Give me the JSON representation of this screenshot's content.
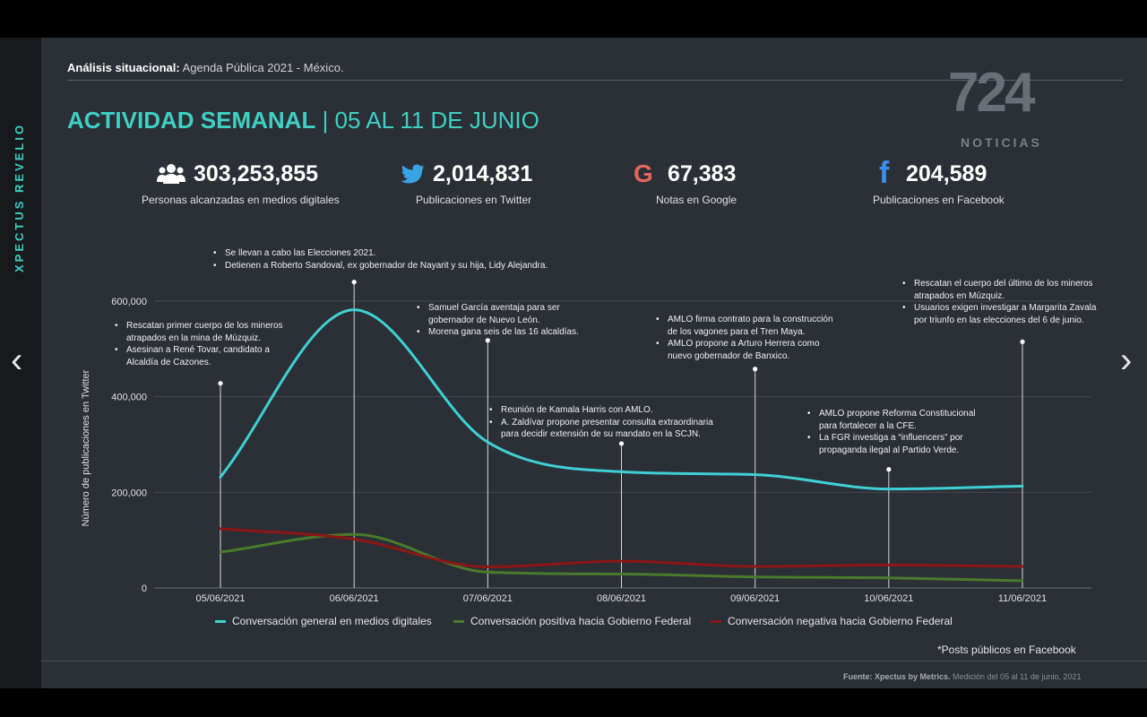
{
  "sidebar": {
    "brand": "XPECTUS REVELIO"
  },
  "header": {
    "crumb_bold": "Análisis situacional:",
    "crumb_rest": " Agenda Pública 2021 - México.",
    "title_main": "ACTIVIDAD SEMANAL",
    "title_rest": " | 05 AL 11 DE JUNIO"
  },
  "logo": {
    "number": "724",
    "sub": "NOTICIAS"
  },
  "stats": [
    {
      "icon": "people-icon",
      "value": "303,253,855",
      "label": "Personas alcanzadas en medios digitales"
    },
    {
      "icon": "twitter-icon",
      "value": "2,014,831",
      "label": "Publicaciones en Twitter"
    },
    {
      "icon": "google-icon",
      "value": "67,383",
      "label": "Notas en Google"
    },
    {
      "icon": "facebook-icon",
      "value": "204,589",
      "label": "Publicaciones en Facebook"
    }
  ],
  "chart_data": {
    "type": "line",
    "x": [
      "05/06/2021",
      "06/06/2021",
      "07/06/2021",
      "08/06/2021",
      "09/06/2021",
      "10/06/2021",
      "11/06/2021"
    ],
    "ylabel": "Número de publicaciones en Twitter",
    "yticks": [
      0,
      200000,
      400000,
      600000
    ],
    "ytick_labels": [
      "0",
      "200,000",
      "400,000",
      "600,000"
    ],
    "ylim": [
      0,
      650000
    ],
    "grid": true,
    "series": [
      {
        "name": "Conversación general en medios digitales",
        "color": "#3fd0d4",
        "values": [
          232000,
          582000,
          305000,
          243000,
          237000,
          207000,
          213000
        ]
      },
      {
        "name": "Conversación positiva hacia Gobierno Federal",
        "color": "#4a7a2c",
        "values": [
          75000,
          112000,
          33000,
          29000,
          23000,
          21000,
          15000
        ]
      },
      {
        "name": "Conversación negativa hacia Gobierno Federal",
        "color": "#8e1616",
        "values": [
          124000,
          102000,
          44000,
          56000,
          45000,
          48000,
          45000
        ]
      }
    ],
    "annotation_markers": [
      {
        "x": "05/06/2021",
        "value": 428000
      },
      {
        "x": "06/06/2021",
        "value": 640000
      },
      {
        "x": "07/06/2021",
        "value": 518000
      },
      {
        "x": "08/06/2021",
        "value": 302000
      },
      {
        "x": "09/06/2021",
        "value": 458000
      },
      {
        "x": "10/06/2021",
        "value": 248000
      },
      {
        "x": "11/06/2021",
        "value": 515000
      }
    ]
  },
  "annotations": [
    [
      "Rescatan primer cuerpo de los mineros",
      "atrapados en la mina de Múzquiz.",
      "Asesinan a René Tovar, candidato a",
      "Alcaldía de Cazones."
    ],
    [
      "Se llevan a cabo las Elecciones 2021.",
      "Detienen a Roberto Sandoval, ex gobernador de Nayarit y su hija, Lidy Alejandra."
    ],
    [
      "Samuel García aventaja para ser",
      "gobernador de Nuevo León.",
      "Morena gana seis de las 16 alcaldías."
    ],
    [
      "Reunión de  Kamala Harris con AMLO.",
      "A. Zaldívar propone presentar consulta extraordinaria",
      "para decidir extensión de su mandato en la SCJN."
    ],
    [
      "AMLO firma contrato para la construcción",
      "de los vagones para el Tren Maya.",
      "AMLO propone a Arturo Herrera como",
      "nuevo gobernador de Banxico."
    ],
    [
      "AMLO propone Reforma Constitucional",
      "para fortalecer a la CFE.",
      "La FGR investiga a “influencers”  por",
      "propaganda ilegal al Partido Verde."
    ],
    [
      "Rescatan el cuerpo del último de los mineros",
      "atrapados en Múzquiz.",
      "Usuarios exigen investigar a Margarita Zavala",
      "por triunfo en las elecciones del 6 de junio."
    ]
  ],
  "footnote": "*Posts públicos en Facebook",
  "source": {
    "bold": "Fuente: Xpectus by Metrics.",
    "rest": " Medición del 05 al 11 de junio, 2021"
  },
  "nav": {
    "prev": "‹",
    "next": "›"
  }
}
